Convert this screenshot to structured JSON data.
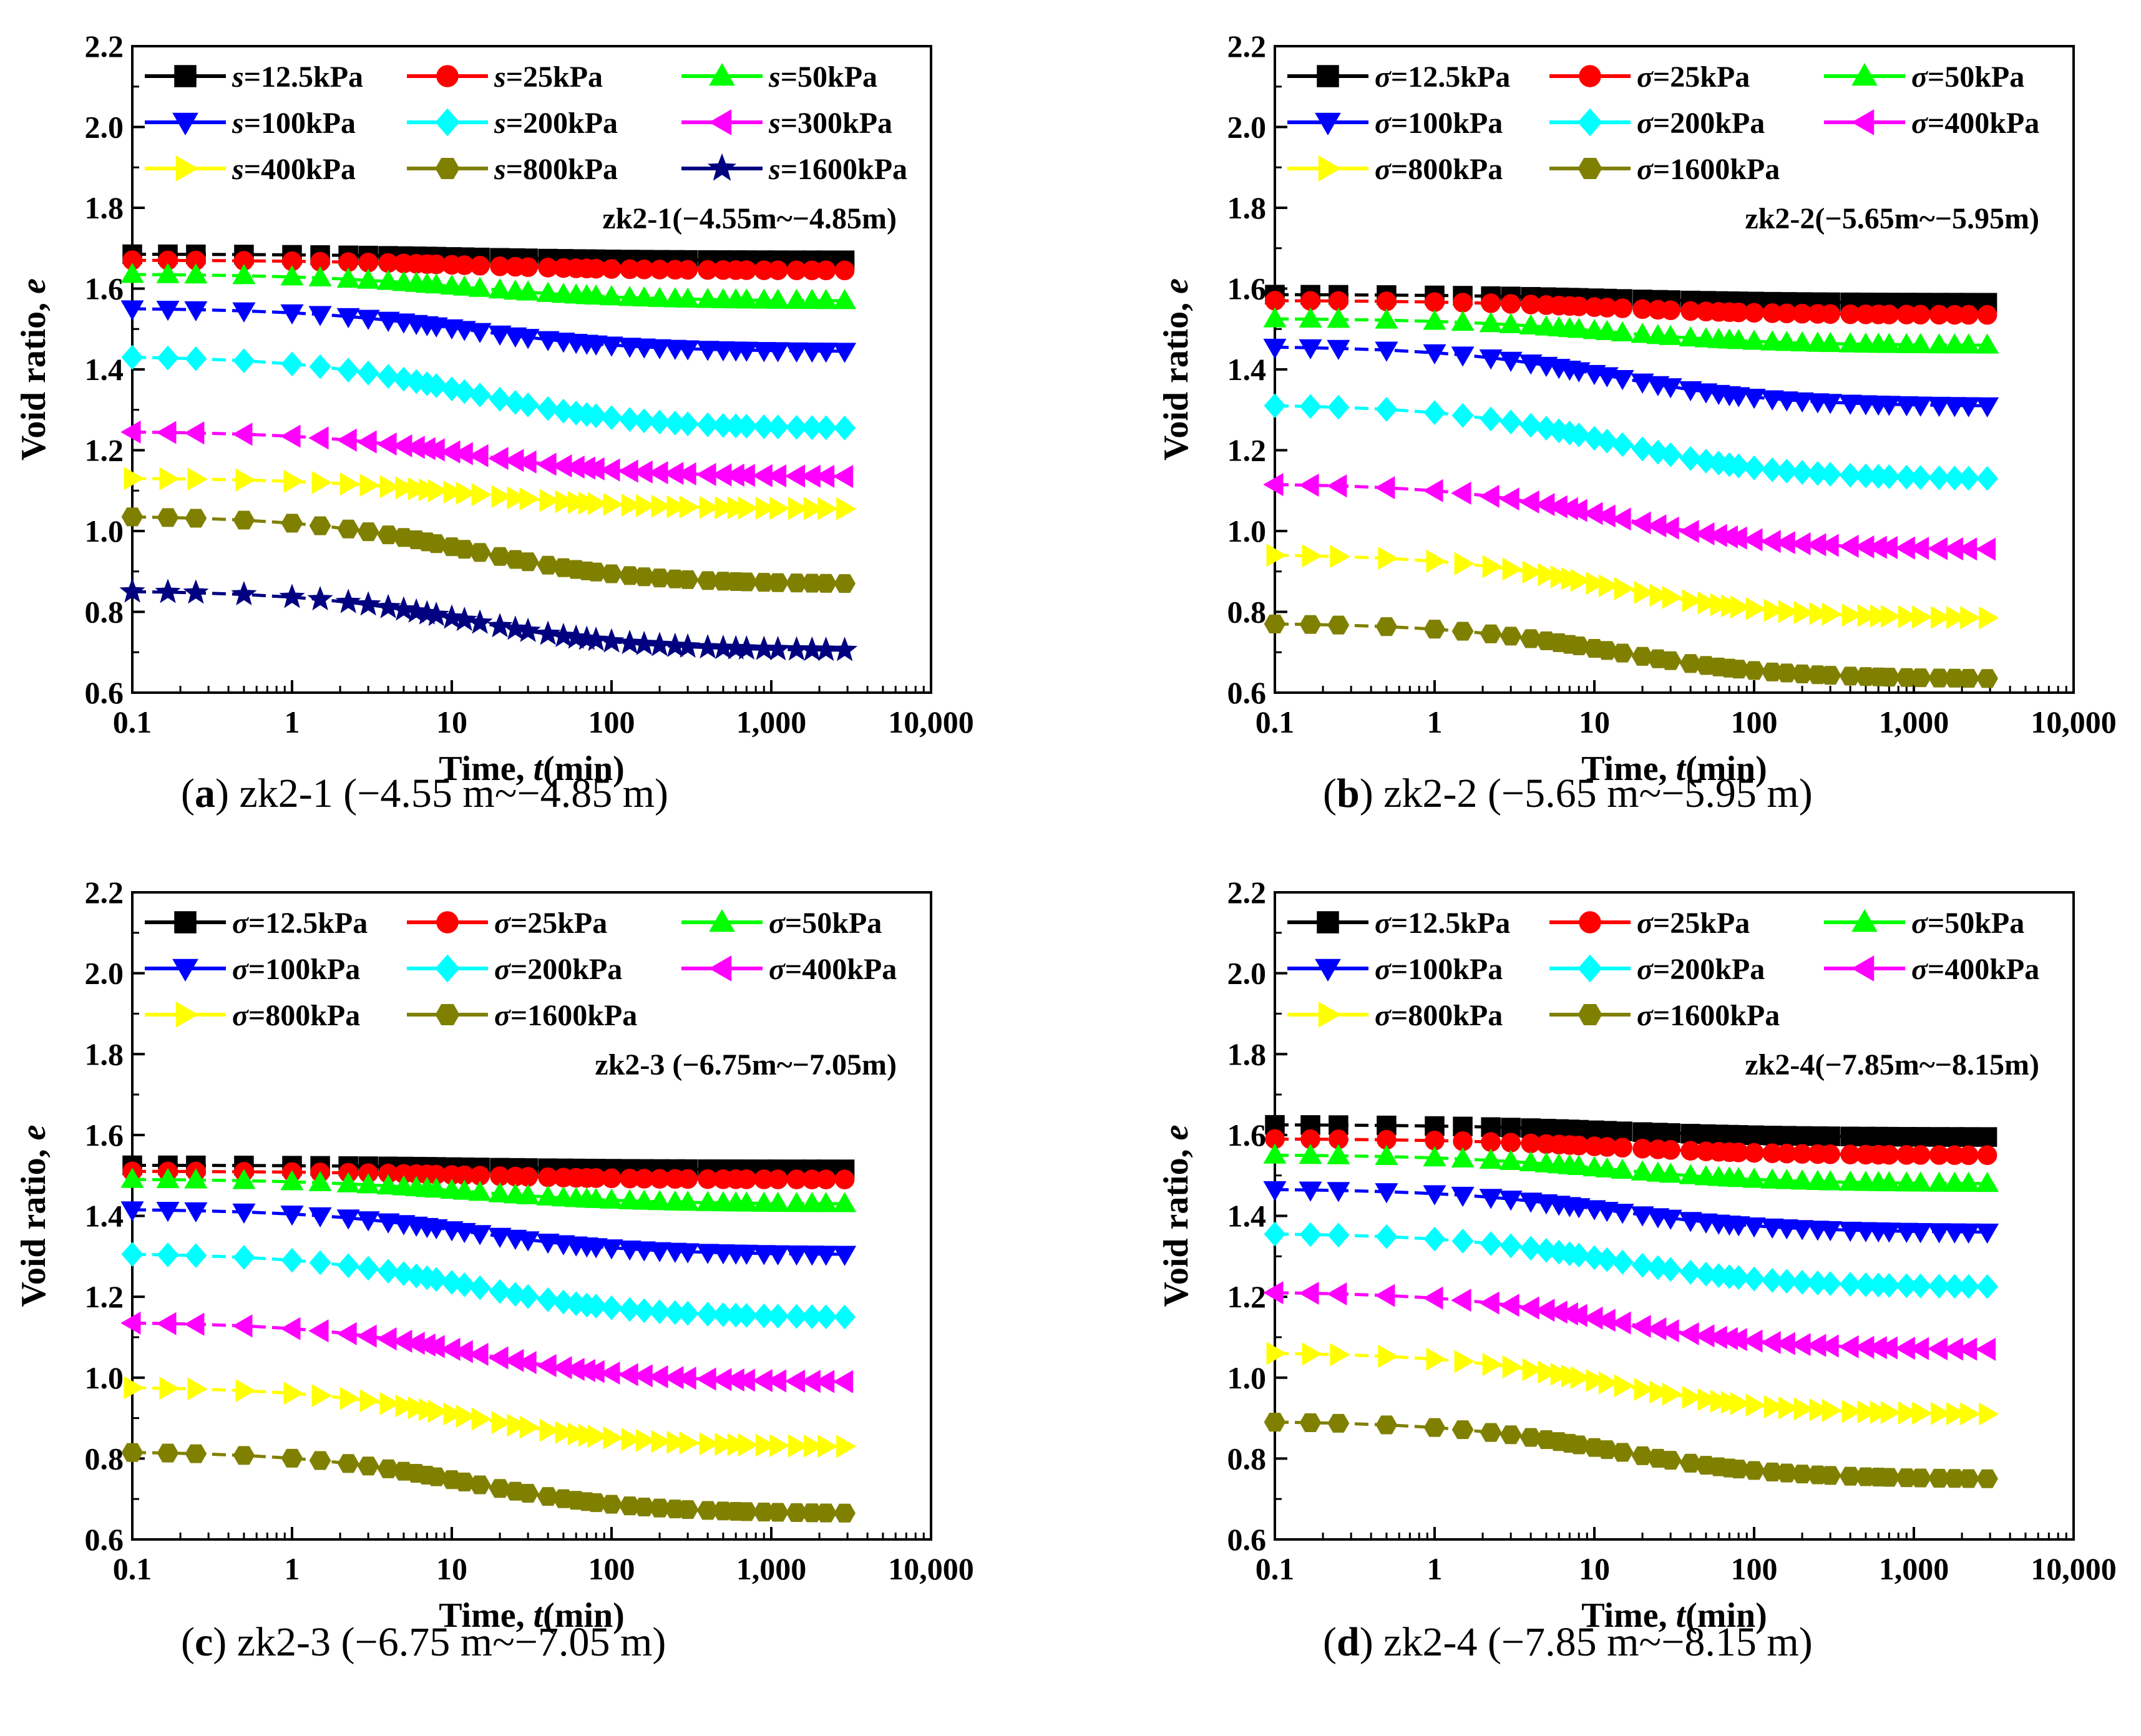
{
  "chart_data": [
    {
      "id": "a",
      "type": "line",
      "caption": {
        "letter": "a",
        "text": "zk2-1 (−4.55 m~−4.85 m)"
      },
      "annotation": "zk2-1(−4.55m~−4.85m)",
      "xlabel": "Time, t(min)",
      "xlabel_prefix": "Time, ",
      "xlabel_var": "t",
      "xlabel_suffix": "(min)",
      "ylabel": "Void ratio, e",
      "ylabel_prefix": "Void ratio, ",
      "ylabel_var": "e",
      "xscale": "log",
      "xlim": [
        0.1,
        10000
      ],
      "ylim": [
        0.6,
        2.2
      ],
      "x_ticks": [
        "0.1",
        "1",
        "10",
        "100",
        "1,000",
        "10,000"
      ],
      "y_ticks": [
        "0.6",
        "0.8",
        "1.0",
        "1.2",
        "1.4",
        "1.6",
        "1.8",
        "2.0",
        "2.2"
      ],
      "legend_var": "s",
      "grid": false,
      "legend_position": "top-left",
      "series": [
        {
          "name": "s=12.5kPa",
          "label": "12.5kPa",
          "marker": "square",
          "color": "#000000",
          "start": 1.685,
          "end": 1.67
        },
        {
          "name": "s=25kPa",
          "label": "25kPa",
          "marker": "circle",
          "color": "#ff0000",
          "start": 1.67,
          "end": 1.645
        },
        {
          "name": "s=50kPa",
          "label": "50kPa",
          "marker": "triangle-up",
          "color": "#00ff00",
          "start": 1.635,
          "end": 1.57
        },
        {
          "name": "s=100kPa",
          "label": "100kPa",
          "marker": "triangle-down",
          "color": "#0000ff",
          "start": 1.55,
          "end": 1.445
        },
        {
          "name": "s=200kPa",
          "label": "200kPa",
          "marker": "diamond",
          "color": "#00ffff",
          "start": 1.43,
          "end": 1.255
        },
        {
          "name": "s=300kPa",
          "label": "300kPa",
          "marker": "triangle-left",
          "color": "#ff00ff",
          "start": 1.245,
          "end": 1.135
        },
        {
          "name": "s=400kPa",
          "label": "400kPa",
          "marker": "triangle-right",
          "color": "#ffff00",
          "start": 1.13,
          "end": 1.055
        },
        {
          "name": "s=800kPa",
          "label": "800kPa",
          "marker": "hexagon",
          "color": "#808000",
          "start": 1.035,
          "end": 0.87
        },
        {
          "name": "s=1600kPa",
          "label": "1600kPa",
          "marker": "star",
          "color": "#000080",
          "start": 0.85,
          "end": 0.705
        }
      ]
    },
    {
      "id": "b",
      "type": "line",
      "caption": {
        "letter": "b",
        "text": "zk2-2 (−5.65 m~−5.95 m)"
      },
      "annotation": "zk2-2(−5.65m~−5.95m)",
      "xlabel": "Time, t(min)",
      "xlabel_prefix": "Time, ",
      "xlabel_var": "t",
      "xlabel_suffix": "(min)",
      "ylabel": "Void ratio, e",
      "ylabel_prefix": "Void ratio, ",
      "ylabel_var": "e",
      "xscale": "log",
      "xlim": [
        0.1,
        10000
      ],
      "ylim": [
        0.6,
        2.2
      ],
      "x_ticks": [
        "0.1",
        "1",
        "10",
        "100",
        "1,000",
        "10,000"
      ],
      "y_ticks": [
        "0.6",
        "0.8",
        "1.0",
        "1.2",
        "1.4",
        "1.6",
        "1.8",
        "2.0",
        "2.2"
      ],
      "legend_var": "σ",
      "grid": false,
      "legend_position": "top-left",
      "series": [
        {
          "name": "σ=12.5kPa",
          "label": "12.5kPa",
          "marker": "square",
          "color": "#000000",
          "start": 1.585,
          "end": 1.565
        },
        {
          "name": "σ=25kPa",
          "label": "25kPa",
          "marker": "circle",
          "color": "#ff0000",
          "start": 1.57,
          "end": 1.535
        },
        {
          "name": "σ=50kPa",
          "label": "50kPa",
          "marker": "triangle-up",
          "color": "#00ff00",
          "start": 1.525,
          "end": 1.46
        },
        {
          "name": "σ=100kPa",
          "label": "100kPa",
          "marker": "triangle-down",
          "color": "#0000ff",
          "start": 1.455,
          "end": 1.31
        },
        {
          "name": "σ=200kPa",
          "label": "200kPa",
          "marker": "diamond",
          "color": "#00ffff",
          "start": 1.31,
          "end": 1.13
        },
        {
          "name": "σ=400kPa",
          "label": "400kPa",
          "marker": "triangle-left",
          "color": "#ff00ff",
          "start": 1.115,
          "end": 0.955
        },
        {
          "name": "σ=800kPa",
          "label": "800kPa",
          "marker": "triangle-right",
          "color": "#ffff00",
          "start": 0.94,
          "end": 0.785
        },
        {
          "name": "σ=1600kPa",
          "label": "1600kPa",
          "marker": "hexagon",
          "color": "#808000",
          "start": 0.77,
          "end": 0.635
        }
      ]
    },
    {
      "id": "c",
      "type": "line",
      "caption": {
        "letter": "c",
        "text": "zk2-3 (−6.75 m~−7.05 m)"
      },
      "annotation": "zk2-3 (−6.75m~−7.05m)",
      "xlabel": "Time, t(min)",
      "xlabel_prefix": "Time, ",
      "xlabel_var": "t",
      "xlabel_suffix": "(min)",
      "ylabel": "Void ratio, e",
      "ylabel_prefix": "Void ratio, ",
      "ylabel_var": "e",
      "xscale": "log",
      "xlim": [
        0.1,
        10000
      ],
      "ylim": [
        0.6,
        2.2
      ],
      "x_ticks": [
        "0.1",
        "1",
        "10",
        "100",
        "1,000",
        "10,000"
      ],
      "y_ticks": [
        "0.6",
        "0.8",
        "1.0",
        "1.2",
        "1.4",
        "1.6",
        "1.8",
        "2.0",
        "2.2"
      ],
      "legend_var": "σ",
      "grid": false,
      "legend_position": "top-left",
      "series": [
        {
          "name": "σ=12.5kPa",
          "label": "12.5kPa",
          "marker": "square",
          "color": "#000000",
          "start": 1.525,
          "end": 1.515
        },
        {
          "name": "σ=25kPa",
          "label": "25kPa",
          "marker": "circle",
          "color": "#ff0000",
          "start": 1.51,
          "end": 1.49
        },
        {
          "name": "σ=50kPa",
          "label": "50kPa",
          "marker": "triangle-up",
          "color": "#00ff00",
          "start": 1.49,
          "end": 1.43
        },
        {
          "name": "σ=100kPa",
          "label": "100kPa",
          "marker": "triangle-down",
          "color": "#0000ff",
          "start": 1.415,
          "end": 1.305
        },
        {
          "name": "σ=200kPa",
          "label": "200kPa",
          "marker": "diamond",
          "color": "#00ffff",
          "start": 1.305,
          "end": 1.15
        },
        {
          "name": "σ=400kPa",
          "label": "400kPa",
          "marker": "triangle-left",
          "color": "#ff00ff",
          "start": 1.135,
          "end": 0.99
        },
        {
          "name": "σ=800kPa",
          "label": "800kPa",
          "marker": "triangle-right",
          "color": "#ffff00",
          "start": 0.975,
          "end": 0.83
        },
        {
          "name": "σ=1600kPa",
          "label": "1600kPa",
          "marker": "hexagon",
          "color": "#808000",
          "start": 0.815,
          "end": 0.665
        }
      ]
    },
    {
      "id": "d",
      "type": "line",
      "caption": {
        "letter": "d",
        "text": "zk2-4 (−7.85 m~−8.15 m)"
      },
      "annotation": "zk2-4(−7.85m~−8.15m)",
      "xlabel": "Time, t(min)",
      "xlabel_prefix": "Time, ",
      "xlabel_var": "t",
      "xlabel_suffix": "(min)",
      "ylabel": "Void ratio, e",
      "ylabel_prefix": "Void ratio, ",
      "ylabel_var": "e",
      "xscale": "log",
      "xlim": [
        0.1,
        10000
      ],
      "ylim": [
        0.6,
        2.2
      ],
      "x_ticks": [
        "0.1",
        "1",
        "10",
        "100",
        "1,000",
        "10,000"
      ],
      "y_ticks": [
        "0.6",
        "0.8",
        "1.0",
        "1.2",
        "1.4",
        "1.6",
        "1.8",
        "2.0",
        "2.2"
      ],
      "legend_var": "σ",
      "grid": false,
      "legend_position": "top-left",
      "series": [
        {
          "name": "σ=12.5kPa",
          "label": "12.5kPa",
          "marker": "square",
          "color": "#000000",
          "start": 1.625,
          "end": 1.595
        },
        {
          "name": "σ=25kPa",
          "label": "25kPa",
          "marker": "circle",
          "color": "#ff0000",
          "start": 1.59,
          "end": 1.55
        },
        {
          "name": "σ=50kPa",
          "label": "50kPa",
          "marker": "triangle-up",
          "color": "#00ff00",
          "start": 1.55,
          "end": 1.48
        },
        {
          "name": "σ=100kPa",
          "label": "100kPa",
          "marker": "triangle-down",
          "color": "#0000ff",
          "start": 1.465,
          "end": 1.36
        },
        {
          "name": "σ=200kPa",
          "label": "200kPa",
          "marker": "diamond",
          "color": "#00ffff",
          "start": 1.355,
          "end": 1.225
        },
        {
          "name": "σ=400kPa",
          "label": "400kPa",
          "marker": "triangle-left",
          "color": "#ff00ff",
          "start": 1.21,
          "end": 1.07
        },
        {
          "name": "σ=800kPa",
          "label": "800kPa",
          "marker": "triangle-right",
          "color": "#ffff00",
          "start": 1.06,
          "end": 0.91
        },
        {
          "name": "σ=1600kPa",
          "label": "1600kPa",
          "marker": "hexagon",
          "color": "#808000",
          "start": 0.89,
          "end": 0.75
        }
      ]
    }
  ]
}
